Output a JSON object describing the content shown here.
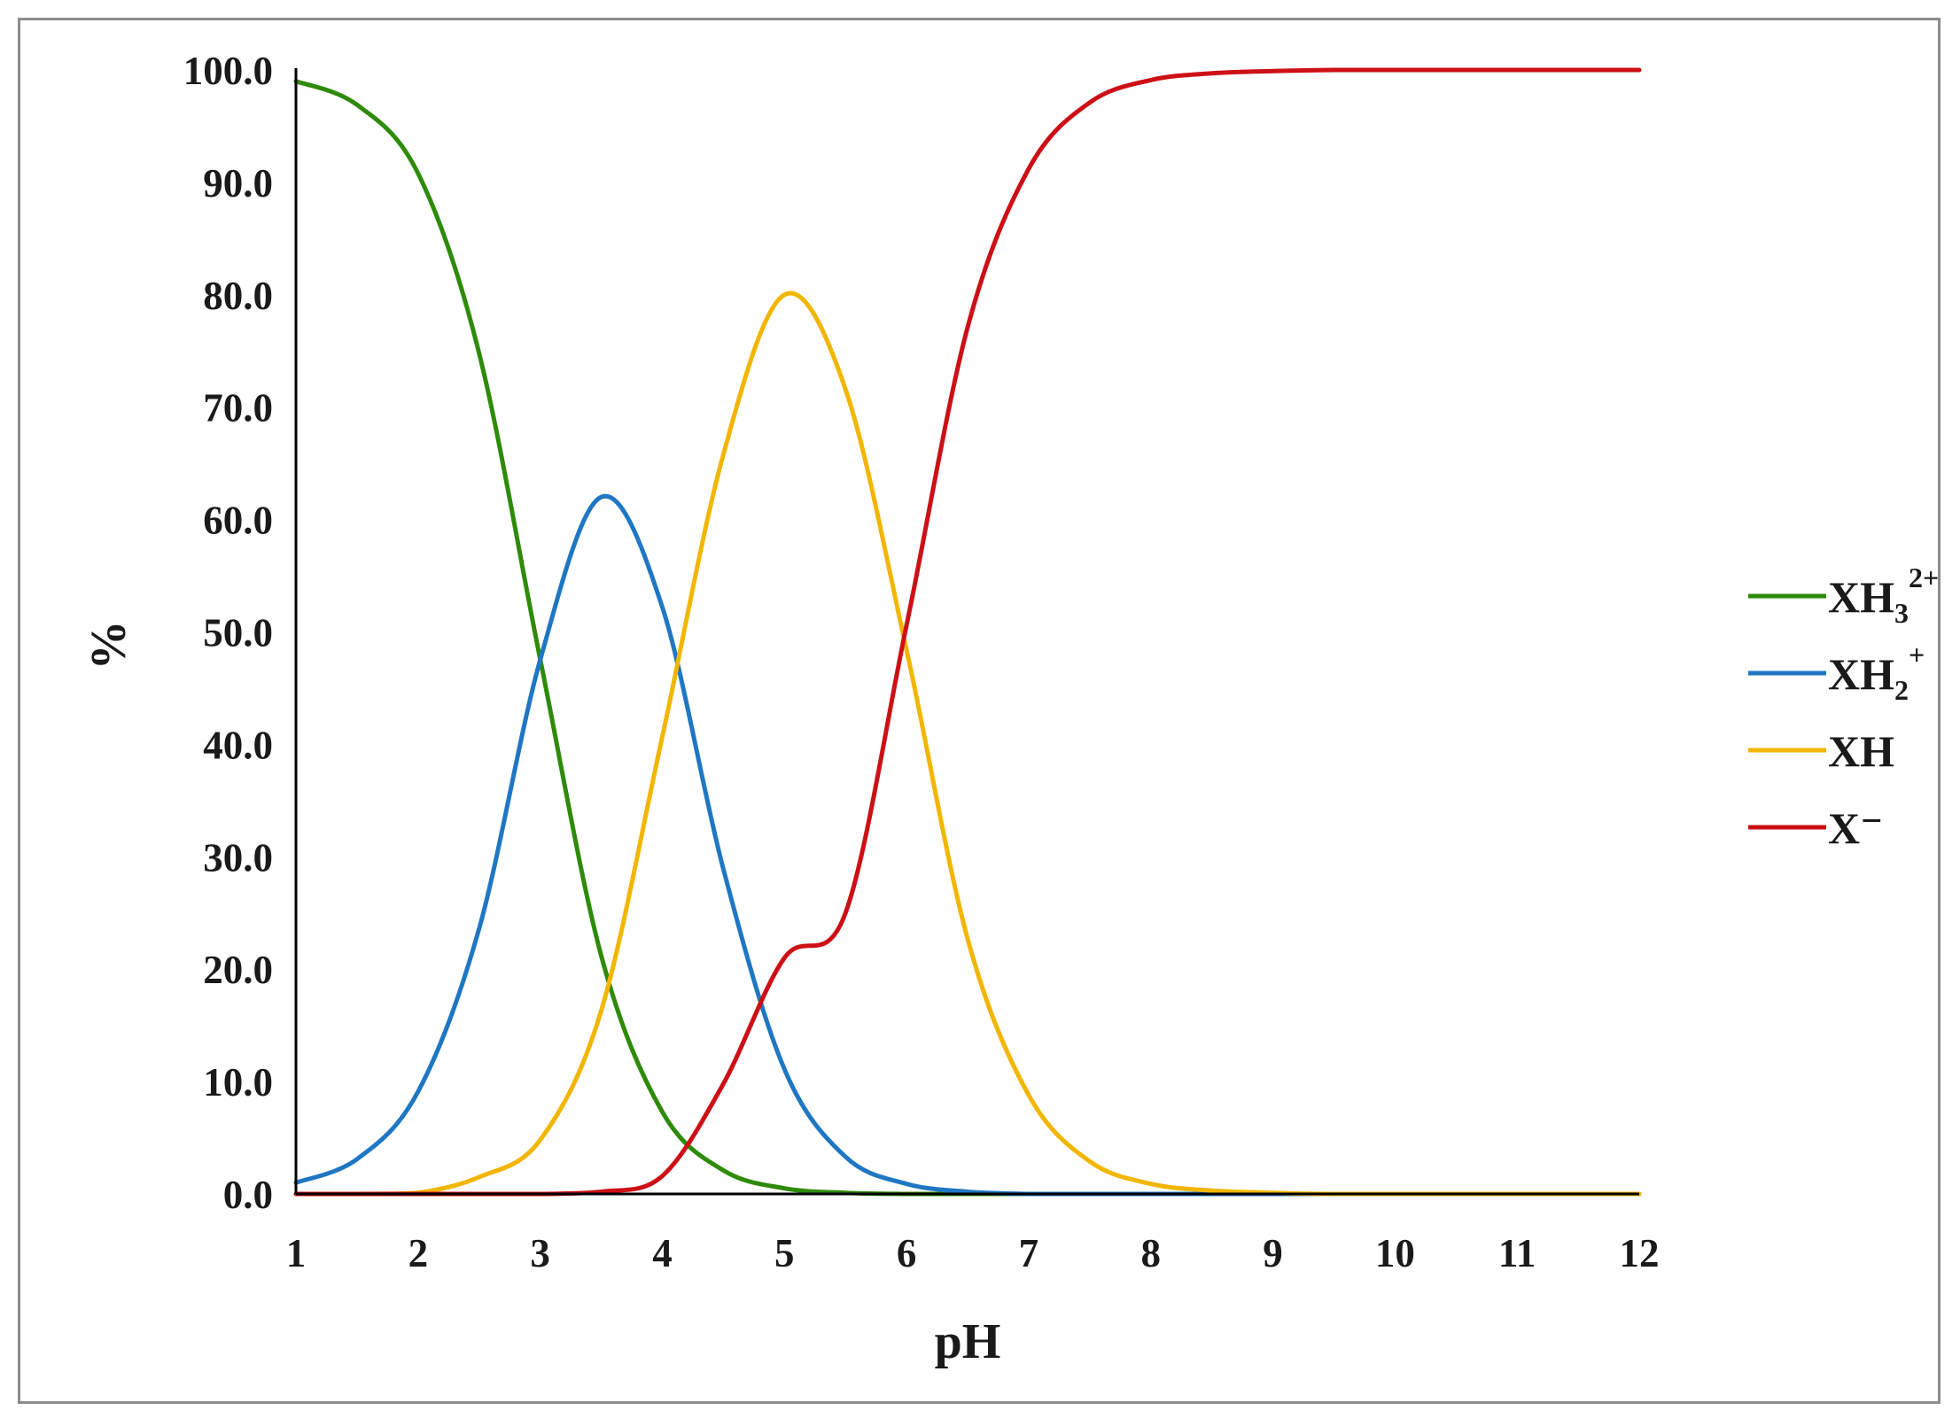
{
  "chart_data": {
    "type": "line",
    "title": "",
    "xlabel": "pH",
    "ylabel": "%",
    "xlim": [
      1,
      12
    ],
    "ylim": [
      0,
      100
    ],
    "x_ticks": [
      "1",
      "2",
      "3",
      "4",
      "5",
      "6",
      "7",
      "8",
      "9",
      "10",
      "11",
      "12"
    ],
    "y_ticks": [
      "0.0",
      "10.0",
      "20.0",
      "30.0",
      "40.0",
      "50.0",
      "60.0",
      "70.0",
      "80.0",
      "90.0",
      "100.0"
    ],
    "grid": false,
    "legend_position": "right",
    "x": [
      1,
      1.5,
      2,
      2.5,
      3,
      3.5,
      4,
      4.5,
      5,
      5.5,
      6,
      6.5,
      7,
      7.5,
      8,
      8.5,
      9,
      9.5,
      10,
      10.5,
      11,
      11.5,
      12
    ],
    "series": [
      {
        "name": "XH3²⁺",
        "label_main": "XH",
        "label_sub": "3",
        "label_sup": "2+",
        "color": "#2e8b0a",
        "values": [
          99.0,
          96.9,
          90.8,
          74.8,
          47.6,
          21.2,
          7.3,
          2.1,
          0.5,
          0.1,
          0.0,
          0.0,
          0.0,
          0.0,
          0.0,
          0.0,
          0.0,
          0.0,
          0.0,
          0.0,
          0.0,
          0.0,
          0.0
        ]
      },
      {
        "name": "XH2⁺",
        "label_main": "XH",
        "label_sub": "2",
        "label_sup": "+",
        "color": "#1f77c4",
        "values": [
          1.0,
          3.1,
          9.1,
          23.6,
          47.5,
          62.0,
          52.2,
          28.9,
          11.1,
          3.3,
          0.9,
          0.2,
          0.0,
          0.0,
          0.0,
          0.0,
          0.0,
          0.0,
          0.0,
          0.0,
          0.0,
          0.0,
          0.0
        ]
      },
      {
        "name": "XH",
        "label_main": "XH",
        "label_sub": "",
        "label_sup": "",
        "color": "#f2b600",
        "values": [
          0.0,
          0.0,
          0.1,
          1.5,
          4.8,
          16.3,
          40.7,
          65.8,
          80.0,
          71.6,
          48.4,
          22.7,
          8.8,
          2.9,
          0.9,
          0.3,
          0.1,
          0.0,
          0.0,
          0.0,
          0.0,
          0.0,
          0.0
        ]
      },
      {
        "name": "X⁻",
        "label_main": "X⁻",
        "label_sub": "",
        "label_sup": "",
        "color": "#cc1016",
        "values": [
          0.0,
          0.0,
          0.0,
          0.0,
          0.0,
          0.2,
          1.6,
          9.8,
          21.0,
          25.0,
          50.6,
          77.1,
          91.2,
          97.1,
          99.1,
          99.7,
          99.9,
          100.0,
          100.0,
          100.0,
          100.0,
          100.0,
          100.0
        ]
      }
    ]
  }
}
